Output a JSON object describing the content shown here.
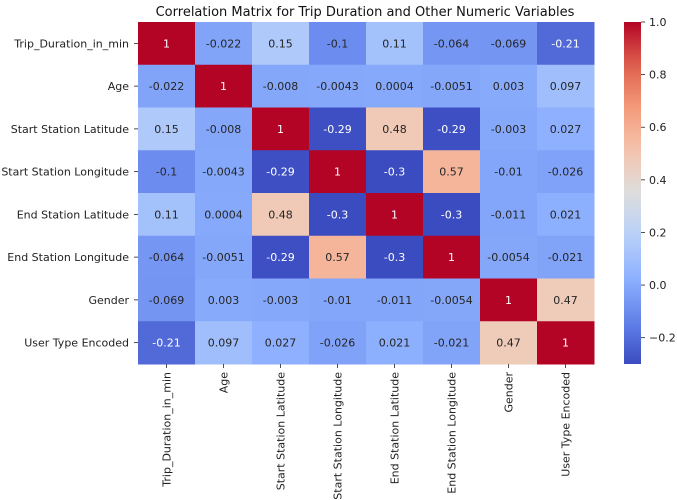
{
  "chart_data": {
    "type": "heatmap",
    "title": "Correlation Matrix for Trip Duration and Other Numeric Variables",
    "xlabel": "",
    "ylabel": "",
    "row_labels": [
      "Trip_Duration_in_min",
      "Age",
      "Start Station Latitude",
      "Start Station Longitude",
      "End Station Latitude",
      "End Station Longitude",
      "Gender",
      "User Type Encoded"
    ],
    "column_labels": [
      "Trip_Duration_in_min",
      "Age",
      "Start Station Latitude",
      "Start Station Longitude",
      "End Station Latitude",
      "End Station Longitude",
      "Gender",
      "User Type Encoded"
    ],
    "values": [
      [
        1,
        -0.022,
        0.15,
        -0.1,
        0.11,
        -0.064,
        -0.069,
        -0.21
      ],
      [
        -0.022,
        1,
        -0.008,
        -0.0043,
        0.0004,
        -0.0051,
        0.003,
        0.097
      ],
      [
        0.15,
        -0.008,
        1,
        -0.29,
        0.48,
        -0.29,
        -0.003,
        0.027
      ],
      [
        -0.1,
        -0.0043,
        -0.29,
        1,
        -0.3,
        0.57,
        -0.01,
        -0.026
      ],
      [
        0.11,
        0.0004,
        0.48,
        -0.3,
        1,
        -0.3,
        -0.011,
        0.021
      ],
      [
        -0.064,
        -0.0051,
        -0.29,
        0.57,
        -0.3,
        1,
        -0.0054,
        -0.021
      ],
      [
        -0.069,
        0.003,
        -0.003,
        -0.01,
        -0.011,
        -0.0054,
        1,
        0.47
      ],
      [
        -0.21,
        0.097,
        0.027,
        -0.026,
        0.021,
        -0.021,
        0.47,
        1
      ]
    ],
    "cell_labels": [
      [
        "1",
        "-0.022",
        "0.15",
        "-0.1",
        "0.11",
        "-0.064",
        "-0.069",
        "-0.21"
      ],
      [
        "-0.022",
        "1",
        "-0.008",
        "-0.0043",
        "0.0004",
        "-0.0051",
        "0.003",
        "0.097"
      ],
      [
        "0.15",
        "-0.008",
        "1",
        "-0.29",
        "0.48",
        "-0.29",
        "-0.003",
        "0.027"
      ],
      [
        "-0.1",
        "-0.0043",
        "-0.29",
        "1",
        "-0.3",
        "0.57",
        "-0.01",
        "-0.026"
      ],
      [
        "0.11",
        "0.0004",
        "0.48",
        "-0.3",
        "1",
        "-0.3",
        "-0.011",
        "0.021"
      ],
      [
        "-0.064",
        "-0.0051",
        "-0.29",
        "0.57",
        "-0.3",
        "1",
        "-0.0054",
        "-0.021"
      ],
      [
        "-0.069",
        "0.003",
        "-0.003",
        "-0.01",
        "-0.011",
        "-0.0054",
        "1",
        "0.47"
      ],
      [
        "-0.21",
        "0.097",
        "0.027",
        "-0.026",
        "0.021",
        "-0.021",
        "0.47",
        "1"
      ]
    ],
    "colormap": "coolwarm",
    "colorbar": {
      "range": [
        -0.3,
        1.0
      ],
      "ticks": [
        -0.2,
        0.0,
        0.2,
        0.4,
        0.6,
        0.8,
        1.0
      ],
      "tick_labels": [
        "−0.2",
        "0.0",
        "0.2",
        "0.4",
        "0.6",
        "0.8",
        "1.0"
      ],
      "placement": "right"
    },
    "colors": {
      "low": "#3b4cc0",
      "mid": "#dddddd",
      "high": "#b40426",
      "text_light": "#ffffff",
      "text_dark": "#262626"
    },
    "grid": false,
    "legend": "none"
  }
}
